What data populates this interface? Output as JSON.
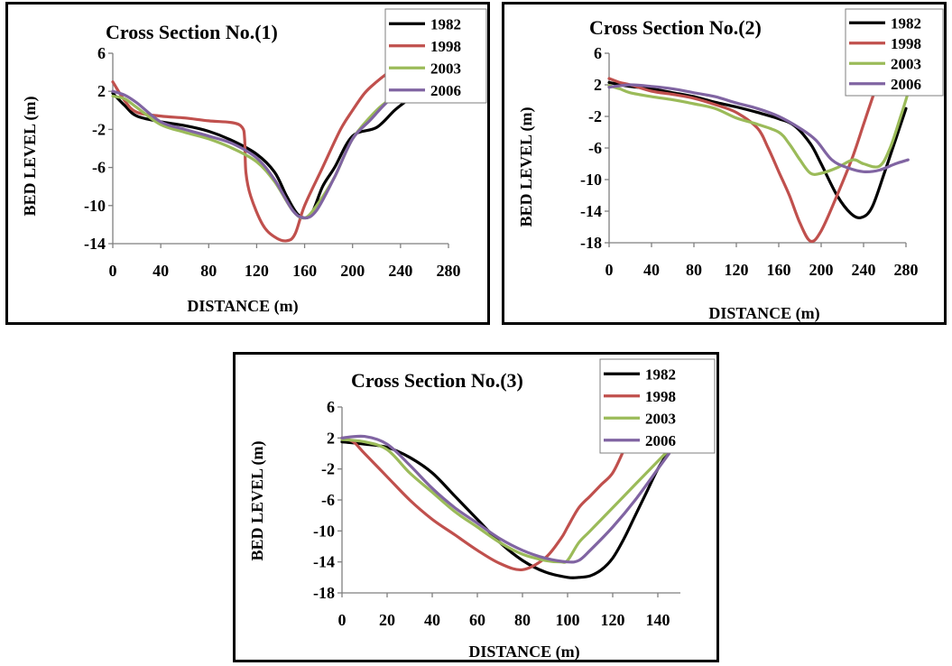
{
  "colors": {
    "1982": "#000000",
    "1998": "#c0504d",
    "2003": "#9bbb59",
    "2006": "#8064a2"
  },
  "chart_data": [
    {
      "type": "line",
      "title": "Cross Section No.(1)",
      "xlabel": "DISTANCE  (m)",
      "ylabel": "BED LEVEL  (m)",
      "xlim": [
        0,
        280
      ],
      "ylim": [
        -14,
        6
      ],
      "xticks": [
        "0",
        "40",
        "80",
        "120",
        "160",
        "200",
        "240",
        "280"
      ],
      "yticks": [
        "6",
        "2",
        "-2",
        "-6",
        "-10",
        "-14"
      ],
      "legend_position": "top-right",
      "grid": false,
      "series": [
        {
          "name": "1982",
          "color": "#000000",
          "points": [
            [
              0,
              1.8
            ],
            [
              10,
              0.5
            ],
            [
              20,
              -0.6
            ],
            [
              40,
              -1.2
            ],
            [
              60,
              -1.6
            ],
            [
              80,
              -2.2
            ],
            [
              100,
              -3.2
            ],
            [
              120,
              -4.6
            ],
            [
              135,
              -6.5
            ],
            [
              145,
              -9
            ],
            [
              155,
              -11
            ],
            [
              165,
              -11
            ],
            [
              175,
              -8
            ],
            [
              185,
              -6
            ],
            [
              200,
              -2.7
            ],
            [
              220,
              -1.8
            ],
            [
              235,
              0
            ],
            [
              245,
              1
            ]
          ]
        },
        {
          "name": "1998",
          "color": "#c0504d",
          "points": [
            [
              0,
              3
            ],
            [
              10,
              1
            ],
            [
              20,
              -0.2
            ],
            [
              40,
              -0.6
            ],
            [
              60,
              -0.8
            ],
            [
              80,
              -1.1
            ],
            [
              100,
              -1.3
            ],
            [
              108,
              -1.8
            ],
            [
              110,
              -3
            ],
            [
              111,
              -6.5
            ],
            [
              115,
              -9
            ],
            [
              125,
              -12
            ],
            [
              135,
              -13.3
            ],
            [
              145,
              -13.7
            ],
            [
              152,
              -13
            ],
            [
              160,
              -10
            ],
            [
              175,
              -6
            ],
            [
              190,
              -2
            ],
            [
              200,
              0
            ],
            [
              210,
              1.8
            ],
            [
              220,
              3
            ],
            [
              230,
              4
            ]
          ]
        },
        {
          "name": "2003",
          "color": "#9bbb59",
          "points": [
            [
              0,
              1.5
            ],
            [
              10,
              1.2
            ],
            [
              20,
              0.3
            ],
            [
              40,
              -1.5
            ],
            [
              60,
              -2.3
            ],
            [
              80,
              -3
            ],
            [
              100,
              -4
            ],
            [
              120,
              -5.4
            ],
            [
              135,
              -7.5
            ],
            [
              150,
              -10.5
            ],
            [
              160,
              -11.3
            ],
            [
              170,
              -10
            ],
            [
              185,
              -7
            ],
            [
              200,
              -3
            ],
            [
              220,
              0
            ],
            [
              235,
              1.5
            ],
            [
              245,
              2.5
            ]
          ]
        },
        {
          "name": "2006",
          "color": "#8064a2",
          "points": [
            [
              0,
              2
            ],
            [
              10,
              1.6
            ],
            [
              20,
              0.8
            ],
            [
              40,
              -1.2
            ],
            [
              60,
              -2
            ],
            [
              80,
              -2.7
            ],
            [
              100,
              -3.5
            ],
            [
              120,
              -5
            ],
            [
              135,
              -7.3
            ],
            [
              150,
              -10.5
            ],
            [
              160,
              -11.3
            ],
            [
              170,
              -10.5
            ],
            [
              185,
              -7
            ],
            [
              200,
              -3
            ],
            [
              215,
              -1
            ],
            [
              230,
              1
            ],
            [
              245,
              2
            ]
          ]
        }
      ]
    },
    {
      "type": "line",
      "title": "Cross Section No.(2)",
      "xlabel": "DISTANCE  (m)",
      "ylabel": "BED LEVEL  (m)",
      "xlim": [
        0,
        280
      ],
      "ylim": [
        -18,
        6
      ],
      "xticks": [
        "0",
        "40",
        "80",
        "120",
        "160",
        "200",
        "240",
        "280"
      ],
      "yticks": [
        "6",
        "2",
        "-2",
        "-6",
        "-10",
        "-14",
        "-18"
      ],
      "legend_position": "top-right",
      "grid": false,
      "series": [
        {
          "name": "1982",
          "color": "#000000",
          "points": [
            [
              0,
              2.3
            ],
            [
              20,
              1.8
            ],
            [
              40,
              1.5
            ],
            [
              60,
              1
            ],
            [
              80,
              0.5
            ],
            [
              100,
              -0.2
            ],
            [
              120,
              -0.8
            ],
            [
              140,
              -1.5
            ],
            [
              160,
              -2.3
            ],
            [
              175,
              -3.2
            ],
            [
              190,
              -5.5
            ],
            [
              200,
              -8
            ],
            [
              215,
              -12
            ],
            [
              228,
              -14.3
            ],
            [
              238,
              -14.8
            ],
            [
              248,
              -13.5
            ],
            [
              260,
              -9
            ],
            [
              270,
              -5
            ],
            [
              280,
              -1
            ]
          ]
        },
        {
          "name": "1998",
          "color": "#c0504d",
          "points": [
            [
              0,
              2.8
            ],
            [
              10,
              2.3
            ],
            [
              20,
              2
            ],
            [
              40,
              1.2
            ],
            [
              60,
              0.8
            ],
            [
              80,
              0.3
            ],
            [
              100,
              -0.5
            ],
            [
              120,
              -1.5
            ],
            [
              140,
              -3.5
            ],
            [
              150,
              -6
            ],
            [
              160,
              -9
            ],
            [
              170,
              -12
            ],
            [
              180,
              -15.5
            ],
            [
              190,
              -17.8
            ],
            [
              200,
              -16.5
            ],
            [
              215,
              -12
            ],
            [
              230,
              -7
            ],
            [
              240,
              -3
            ],
            [
              250,
              1
            ],
            [
              258,
              4
            ]
          ]
        },
        {
          "name": "2003",
          "color": "#9bbb59",
          "points": [
            [
              0,
              1.9
            ],
            [
              10,
              1.5
            ],
            [
              20,
              1
            ],
            [
              40,
              0.5
            ],
            [
              60,
              0.1
            ],
            [
              80,
              -0.4
            ],
            [
              100,
              -1
            ],
            [
              120,
              -2.2
            ],
            [
              140,
              -3
            ],
            [
              160,
              -4
            ],
            [
              170,
              -5.5
            ],
            [
              180,
              -7.5
            ],
            [
              190,
              -9.2
            ],
            [
              200,
              -9.2
            ],
            [
              215,
              -8.5
            ],
            [
              230,
              -7.5
            ],
            [
              240,
              -8
            ],
            [
              255,
              -8.3
            ],
            [
              265,
              -6
            ],
            [
              275,
              -2
            ],
            [
              282,
              1
            ]
          ]
        },
        {
          "name": "2006",
          "color": "#8064a2",
          "points": [
            [
              0,
              1.7
            ],
            [
              20,
              2
            ],
            [
              40,
              1.8
            ],
            [
              60,
              1.5
            ],
            [
              80,
              1
            ],
            [
              100,
              0.5
            ],
            [
              120,
              -0.3
            ],
            [
              140,
              -1
            ],
            [
              160,
              -2
            ],
            [
              180,
              -3.5
            ],
            [
              195,
              -5
            ],
            [
              210,
              -7.5
            ],
            [
              225,
              -8.5
            ],
            [
              240,
              -9
            ],
            [
              255,
              -8.8
            ],
            [
              270,
              -8
            ],
            [
              282,
              -7.5
            ]
          ]
        }
      ]
    },
    {
      "type": "line",
      "title": "Cross Section No.(3)",
      "xlabel": "DISTANCE  (m)",
      "ylabel": "BED LEVEL  (m)",
      "xlim": [
        0,
        150
      ],
      "ylim": [
        -18,
        6
      ],
      "xticks": [
        "0",
        "20",
        "40",
        "60",
        "80",
        "100",
        "120",
        "140"
      ],
      "yticks": [
        "6",
        "2",
        "-2",
        "-6",
        "-10",
        "-14",
        "-18"
      ],
      "legend_position": "top-right",
      "grid": false,
      "series": [
        {
          "name": "1982",
          "color": "#000000",
          "points": [
            [
              0,
              1.5
            ],
            [
              10,
              1.2
            ],
            [
              20,
              0.8
            ],
            [
              30,
              -0.5
            ],
            [
              40,
              -2.5
            ],
            [
              50,
              -5.5
            ],
            [
              60,
              -8.5
            ],
            [
              70,
              -11.5
            ],
            [
              80,
              -13.8
            ],
            [
              90,
              -15.3
            ],
            [
              100,
              -16
            ],
            [
              105,
              -16
            ],
            [
              110,
              -15.8
            ],
            [
              115,
              -15
            ],
            [
              120,
              -13.5
            ],
            [
              125,
              -11
            ],
            [
              130,
              -8
            ],
            [
              135,
              -5
            ],
            [
              140,
              -2
            ],
            [
              145,
              0.3
            ]
          ]
        },
        {
          "name": "1998",
          "color": "#c0504d",
          "points": [
            [
              0,
              2
            ],
            [
              5,
              1.5
            ],
            [
              10,
              0
            ],
            [
              20,
              -3
            ],
            [
              30,
              -6
            ],
            [
              40,
              -8.5
            ],
            [
              50,
              -10.5
            ],
            [
              60,
              -12.5
            ],
            [
              70,
              -14.2
            ],
            [
              80,
              -15
            ],
            [
              90,
              -13.5
            ],
            [
              97,
              -11
            ],
            [
              100,
              -9.5
            ],
            [
              105,
              -7
            ],
            [
              110,
              -5.5
            ],
            [
              115,
              -4
            ],
            [
              120,
              -2.5
            ],
            [
              125,
              0.5
            ],
            [
              130,
              4
            ]
          ]
        },
        {
          "name": "2003",
          "color": "#9bbb59",
          "points": [
            [
              0,
              1.8
            ],
            [
              10,
              1.5
            ],
            [
              20,
              0.5
            ],
            [
              30,
              -2.5
            ],
            [
              40,
              -5
            ],
            [
              50,
              -7.5
            ],
            [
              60,
              -9.5
            ],
            [
              70,
              -11.5
            ],
            [
              80,
              -13
            ],
            [
              90,
              -13.8
            ],
            [
              97,
              -14
            ],
            [
              100,
              -13.8
            ],
            [
              105,
              -11.5
            ],
            [
              110,
              -10
            ],
            [
              120,
              -7
            ],
            [
              130,
              -4
            ],
            [
              140,
              -1
            ],
            [
              145,
              0.5
            ]
          ]
        },
        {
          "name": "2006",
          "color": "#8064a2",
          "points": [
            [
              0,
              2
            ],
            [
              10,
              2.2
            ],
            [
              20,
              1.2
            ],
            [
              30,
              -1.5
            ],
            [
              40,
              -4.5
            ],
            [
              50,
              -7
            ],
            [
              60,
              -9
            ],
            [
              70,
              -11
            ],
            [
              80,
              -12.5
            ],
            [
              90,
              -13.5
            ],
            [
              100,
              -14
            ],
            [
              105,
              -13.8
            ],
            [
              110,
              -12.5
            ],
            [
              120,
              -9.5
            ],
            [
              130,
              -6
            ],
            [
              140,
              -2
            ],
            [
              145,
              0
            ]
          ]
        }
      ]
    }
  ]
}
